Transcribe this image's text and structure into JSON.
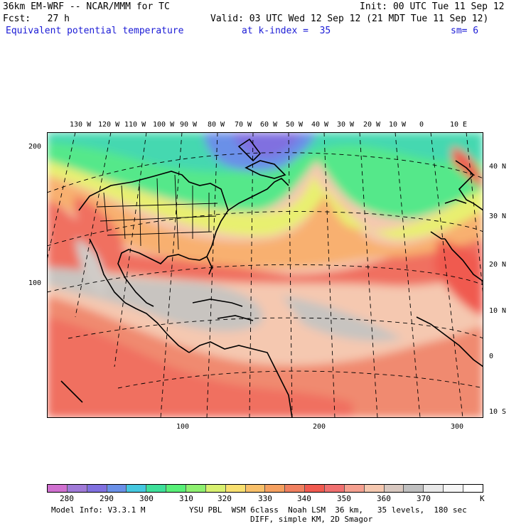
{
  "header": {
    "model": "36km EM-WRF -- NCAR/MMM for TC",
    "init": "Init: 00 UTC Tue 11 Sep 12",
    "fcst": "Fcst:   27 h",
    "valid": "Valid: 03 UTC Wed 12 Sep 12 (21 MDT Tue 11 Sep 12)",
    "field": "Equivalent potential temperature",
    "level": "at k-index =  35",
    "smooth": "sm= 6"
  },
  "axes": {
    "top_lon_labels": [
      "130 W",
      "120 W",
      "110 W",
      "100 W",
      "90 W",
      "80 W",
      "70 W",
      "60 W",
      "50 W",
      "40 W",
      "30 W",
      "20 W",
      "10 W",
      "0",
      "10 E"
    ],
    "right_lat_labels": [
      "40 N",
      "30 N",
      "20 N",
      "10 N",
      "0",
      "10 S"
    ],
    "left_grid_labels": [
      "200",
      "100"
    ],
    "bottom_grid_labels": [
      "100",
      "200",
      "300"
    ]
  },
  "colorbar": {
    "colors": [
      "#d070d0",
      "#a07ad8",
      "#8070e0",
      "#6a90e8",
      "#45c8e0",
      "#3ee09a",
      "#58f078",
      "#8ef070",
      "#d8f070",
      "#f8e070",
      "#f8c06a",
      "#f5a060",
      "#f08060",
      "#f05a50",
      "#f07070",
      "#f5a090",
      "#f5c8b0",
      "#d8c8c0",
      "#c0c0c0",
      "#e8e8e8",
      "#f5f5f5",
      "#ffffff"
    ],
    "labels": [
      "280",
      "290",
      "300",
      "310",
      "320",
      "330",
      "340",
      "350",
      "360",
      "370",
      "K"
    ]
  },
  "footer": {
    "model_info": "Model Info: V3.3.1 M",
    "physics": "YSU PBL  WSM 6class  Noah LSM  36 km,   35 levels,  180 sec",
    "diff": "DIFF, simple KM, 2D Smagor"
  }
}
